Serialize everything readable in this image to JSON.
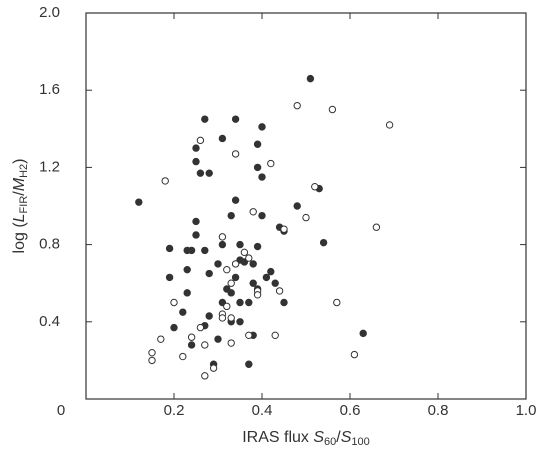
{
  "chart_data": {
    "type": "scatter",
    "xlabel_parts": [
      "IRAS flux ",
      "S",
      "60",
      "/",
      "S",
      "100"
    ],
    "ylabel_parts": [
      "log (",
      "L",
      "FIR",
      "/",
      "M",
      "H2",
      ")"
    ],
    "xlim": [
      0,
      1
    ],
    "ylim": [
      0,
      2
    ],
    "xticks": [
      0.2,
      0.4,
      0.6,
      0.8,
      {
        "value": 1,
        "label": "1.0"
      }
    ],
    "yticks": [
      0,
      0.4,
      0.8,
      1.2,
      1.6,
      {
        "value": 2,
        "label": "2.0"
      }
    ],
    "grid": false,
    "series": [
      {
        "color": "#333333",
        "filled": true,
        "x": [
          0.12,
          0.51,
          0.27,
          0.34,
          0.31,
          0.25,
          0.4,
          0.39,
          0.25,
          0.26,
          0.28,
          0.39,
          0.4,
          0.34,
          0.53,
          0.48,
          0.25,
          0.33,
          0.4,
          0.19,
          0.23,
          0.24,
          0.27,
          0.25,
          0.31,
          0.35,
          0.39,
          0.44,
          0.45,
          0.54,
          0.3,
          0.35,
          0.36,
          0.23,
          0.28,
          0.34,
          0.38,
          0.42,
          0.19,
          0.23,
          0.32,
          0.33,
          0.38,
          0.41,
          0.43,
          0.39,
          0.31,
          0.35,
          0.37,
          0.45,
          0.22,
          0.28,
          0.33,
          0.35,
          0.2,
          0.27,
          0.38,
          0.29,
          0.37,
          0.63,
          0.24,
          0.3
        ],
        "values": [
          1.02,
          1.66,
          1.45,
          1.45,
          1.35,
          1.3,
          1.41,
          1.32,
          1.23,
          1.17,
          1.17,
          1.2,
          1.15,
          1.03,
          1.09,
          1.0,
          0.92,
          0.95,
          0.95,
          0.78,
          0.77,
          0.77,
          0.77,
          0.85,
          0.8,
          0.8,
          0.79,
          0.89,
          0.87,
          0.81,
          0.7,
          0.72,
          0.71,
          0.67,
          0.65,
          0.63,
          0.7,
          0.66,
          0.63,
          0.55,
          0.57,
          0.55,
          0.6,
          0.63,
          0.6,
          0.57,
          0.5,
          0.5,
          0.5,
          0.5,
          0.45,
          0.43,
          0.4,
          0.4,
          0.37,
          0.38,
          0.33,
          0.18,
          0.18,
          0.34,
          0.28,
          0.31
        ]
      },
      {
        "color": "#333333",
        "filled": false,
        "x": [
          0.48,
          0.56,
          0.69,
          0.26,
          0.34,
          0.42,
          0.18,
          0.52,
          0.38,
          0.5,
          0.66,
          0.45,
          0.31,
          0.36,
          0.37,
          0.34,
          0.32,
          0.33,
          0.39,
          0.39,
          0.44,
          0.57,
          0.2,
          0.32,
          0.26,
          0.24,
          0.31,
          0.31,
          0.33,
          0.37,
          0.43,
          0.17,
          0.15,
          0.15,
          0.22,
          0.27,
          0.33,
          0.29,
          0.27,
          0.61
        ],
        "values": [
          1.52,
          1.5,
          1.42,
          1.34,
          1.27,
          1.22,
          1.13,
          1.1,
          0.97,
          0.94,
          0.89,
          0.88,
          0.84,
          0.76,
          0.73,
          0.7,
          0.67,
          0.6,
          0.56,
          0.54,
          0.56,
          0.5,
          0.5,
          0.48,
          0.37,
          0.32,
          0.44,
          0.42,
          0.42,
          0.33,
          0.33,
          0.31,
          0.24,
          0.2,
          0.22,
          0.28,
          0.29,
          0.16,
          0.12,
          0.23
        ]
      }
    ]
  }
}
